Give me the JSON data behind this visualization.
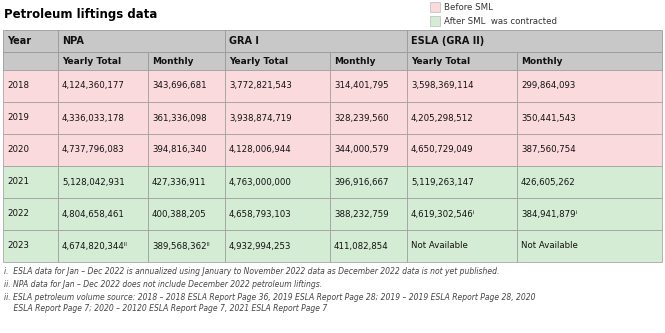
{
  "title": "Petroleum liftings data",
  "legend": [
    {
      "label": "Before SML",
      "color": "#fadadd"
    },
    {
      "label": "After SML  was contracted",
      "color": "#d5ecd4"
    }
  ],
  "rows": [
    {
      "year": "2018",
      "npa_yearly": "4,124,360,177",
      "npa_monthly": "343,696,681",
      "gra1_yearly": "3,772,821,543",
      "gra1_monthly": "314,401,795",
      "esla_yearly": "3,598,369,114",
      "esla_monthly": "299,864,093",
      "color": "#fadadd"
    },
    {
      "year": "2019",
      "npa_yearly": "4,336,033,178",
      "npa_monthly": "361,336,098",
      "gra1_yearly": "3,938,874,719",
      "gra1_monthly": "328,239,560",
      "esla_yearly": "4,205,298,512",
      "esla_monthly": "350,441,543",
      "color": "#fadadd"
    },
    {
      "year": "2020",
      "npa_yearly": "4,737,796,083",
      "npa_monthly": "394,816,340",
      "gra1_yearly": "4,128,006,944",
      "gra1_monthly": "344,000,579",
      "esla_yearly": "4,650,729,049",
      "esla_monthly": "387,560,754",
      "color": "#fadadd"
    },
    {
      "year": "2021",
      "npa_yearly": "5,128,042,931",
      "npa_monthly": "427,336,911",
      "gra1_yearly": "4,763,000,000",
      "gra1_monthly": "396,916,667",
      "esla_yearly": "5,119,263,147",
      "esla_monthly": "426,605,262",
      "color": "#d5ecd4"
    },
    {
      "year": "2022",
      "npa_yearly": "4,804,658,461",
      "npa_monthly": "400,388,205",
      "gra1_yearly": "4,658,793,103",
      "gra1_monthly": "388,232,759",
      "esla_yearly": "4,619,302,546ⁱ",
      "esla_monthly": "384,941,879ⁱ",
      "color": "#d5ecd4"
    },
    {
      "year": "2023",
      "npa_yearly": "4,674,820,344ᴵᴵ",
      "npa_monthly": "389,568,362ᴵᴵ",
      "gra1_yearly": "4,932,994,253",
      "gra1_monthly": "411,082,854",
      "esla_yearly": "Not Available",
      "esla_monthly": "Not Available",
      "color": "#d5ecd4"
    }
  ],
  "footnotes": [
    "i.  ESLA data for Jan – Dec 2022 is annualized using January to November 2022 data as December 2022 data is not yet published.",
    "ii. NPA data for Jan – Dec 2022 does not include December 2022 petroleum liftings.",
    "ii. ESLA petroleum volume source: 2018 – 2018 ESLA Report Page 36, 2019 ESLA Report Page 28; 2019 – 2019 ESLA Report Page 28, 2020\n    ESLA Report Page 7; 2020 – 20120 ESLA Report Page 7, 2021 ESLA Report Page 7"
  ],
  "header_bg": "#c8c8c8",
  "border_color": "#999999",
  "text_color": "#111111",
  "title_color": "#000000",
  "footnote_color": "#444444",
  "fig_width": 6.65,
  "fig_height": 3.33,
  "dpi": 100
}
